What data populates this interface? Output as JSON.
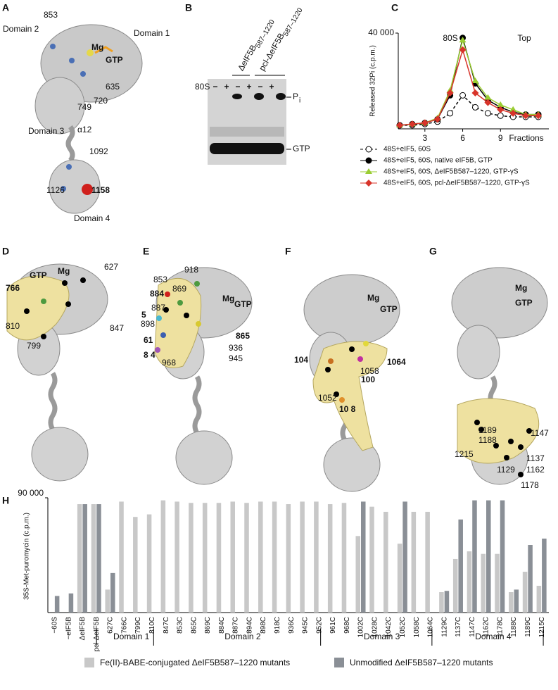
{
  "panel_labels": [
    "A",
    "B",
    "C",
    "D",
    "E",
    "F",
    "G",
    "H"
  ],
  "panel_a": {
    "labels": [
      "853",
      "Domain 2",
      "Domain 1",
      "Mg",
      "GTP",
      "635",
      "720",
      "749",
      "Domain 3",
      "α12",
      "1092",
      "1126",
      "1158",
      "Domain 4"
    ]
  },
  "panel_b": {
    "lanes": [
      {
        "name": "ΔeIF5B",
        "subscript": "587–1220"
      },
      {
        "name": "pcl-ΔeIF5B",
        "subscript": "587–1220"
      }
    ],
    "row_label": "80S",
    "signs": [
      "−",
      "+",
      "−",
      "+",
      "−",
      "+"
    ],
    "pi": {
      "name": "P",
      "subscript": "i"
    },
    "gtp": "GTP"
  },
  "panel_d": {
    "labels": [
      "GTP",
      "Mg",
      "627",
      "766",
      "810",
      "847",
      "799"
    ]
  },
  "panel_e": {
    "labels": [
      "853",
      "918",
      "884",
      "869",
      "887",
      "5",
      "898",
      "61",
      "8 4",
      "968",
      "Mg",
      "GTP",
      "865",
      "936",
      "945"
    ]
  },
  "panel_f": {
    "labels": [
      "Mg",
      "GTP",
      "104",
      "1064",
      "1058",
      "100",
      "1052",
      "10 8"
    ]
  },
  "panel_g": {
    "labels": [
      "Mg",
      "GTP",
      "1189",
      "1188",
      "1147",
      "1215",
      "1137",
      "1162",
      "1129",
      "1178"
    ]
  },
  "chart_data": [
    {
      "type": "line",
      "y_label": "Released 32Pi (c.p.m.)",
      "x_label": "Fractions",
      "annotations": [
        "80S",
        "Top"
      ],
      "x": [
        1,
        2,
        3,
        4,
        5,
        6,
        7,
        8,
        9,
        10,
        11,
        12
      ],
      "xlim": [
        1,
        12
      ],
      "xticks": [
        3,
        6,
        9
      ],
      "ylim": [
        0,
        40000
      ],
      "yticks": [
        {
          "value": 40000,
          "label": "40 000"
        }
      ],
      "series": [
        {
          "name": "48S+eIF5, 60S",
          "color": "#000000",
          "marker": "open-circle",
          "dashed": true,
          "values": [
            1500,
            1500,
            2000,
            3000,
            6500,
            14000,
            9000,
            6500,
            5500,
            5000,
            5000,
            5000
          ]
        },
        {
          "name": "48S+eIF5, 60S, native eIF5B, GTP",
          "color": "#000000",
          "marker": "circle",
          "dashed": false,
          "values": [
            1500,
            2000,
            2500,
            4000,
            14000,
            38000,
            19000,
            12000,
            9000,
            7000,
            6000,
            6000
          ]
        },
        {
          "name": "48S+eIF5, 60S, ΔeIF5B587–1220, GTP-γS",
          "color": "#9acd32",
          "marker": "triangle",
          "dashed": false,
          "values": [
            1500,
            2000,
            2500,
            4500,
            16000,
            37000,
            20000,
            13000,
            10000,
            8000,
            6000,
            6000
          ]
        },
        {
          "name": "48S+eIF5, 60S, pcl-ΔeIF5B587–1220, GTP-γS",
          "color": "#d8342a",
          "marker": "diamond",
          "dashed": false,
          "values": [
            1500,
            2000,
            2500,
            4000,
            15000,
            33000,
            15000,
            11000,
            8000,
            6500,
            5500,
            5500
          ]
        }
      ]
    },
    {
      "type": "bar",
      "y_label": "35S-Met-puromycin (c.p.m.)",
      "categories": [
        "−60S",
        "−eIF5B",
        "ΔeIF5B",
        "pcl-ΔeIF5B",
        "627C",
        "766C",
        "799C",
        "810C",
        "847C",
        "853C",
        "865C",
        "869C",
        "884C",
        "887C",
        "894C",
        "898C",
        "918C",
        "936C",
        "945C",
        "952C",
        "961C",
        "968C",
        "1002C",
        "1028C",
        "1042C",
        "1052C",
        "1058C",
        "1064C",
        "1129C",
        "1137C",
        "1147C",
        "1162C",
        "1178C",
        "1188C",
        "1189C",
        "1215C"
      ],
      "group_labels": [
        "Domain 1",
        "Domain 2",
        "Domain 3",
        "Domain 4"
      ],
      "ylim": [
        0,
        90000
      ],
      "yticks": [
        {
          "value": 90000,
          "label": "90 000"
        }
      ],
      "series": [
        {
          "name": "Fe(II)-BABE-conjugated ΔeIF5B587–1220 mutants",
          "color": "#c8c8c8",
          "values": [
            null,
            null,
            85000,
            85000,
            18000,
            87000,
            75000,
            77000,
            88000,
            87000,
            86000,
            86000,
            86000,
            87000,
            86000,
            87000,
            87000,
            85000,
            87000,
            87000,
            85000,
            86000,
            60000,
            83000,
            79000,
            54000,
            79000,
            79000,
            16000,
            42000,
            48000,
            46000,
            46000,
            16000,
            32000,
            21000
          ]
        },
        {
          "name": "Unmodified ΔeIF5B587–1220 mutants",
          "color": "#8a8f96",
          "values": [
            13000,
            15000,
            85000,
            85000,
            31000,
            null,
            null,
            null,
            null,
            null,
            null,
            null,
            null,
            null,
            null,
            null,
            null,
            null,
            null,
            null,
            null,
            null,
            87000,
            null,
            null,
            87000,
            null,
            null,
            17000,
            73000,
            88000,
            88000,
            88000,
            18000,
            53000,
            58000
          ]
        }
      ]
    }
  ]
}
